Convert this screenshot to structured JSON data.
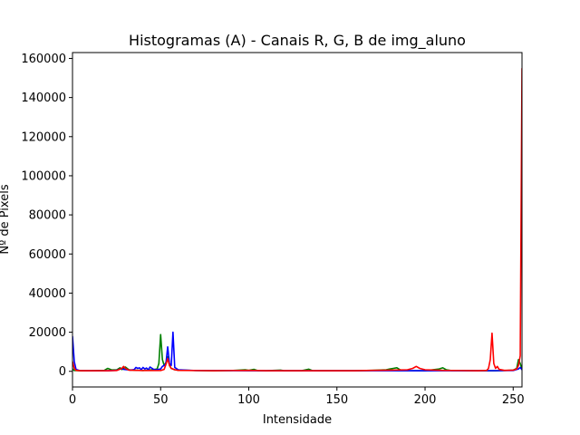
{
  "chart_data": {
    "type": "line",
    "title": "Histogramas (A) - Canais R, G, B de img_aluno",
    "xlabel": "Intensidade",
    "ylabel": "Nº de Pixels",
    "xlim": [
      0,
      255
    ],
    "ylim": [
      -8000,
      163000
    ],
    "xticks": [
      0,
      50,
      100,
      150,
      200,
      250
    ],
    "yticks": [
      0,
      20000,
      40000,
      60000,
      80000,
      100000,
      120000,
      140000,
      160000
    ],
    "grid": false,
    "legend": "none",
    "series": [
      {
        "color": "#008000",
        "points": [
          [
            0,
            1200
          ],
          [
            1,
            400
          ],
          [
            5,
            300
          ],
          [
            10,
            300
          ],
          [
            18,
            500
          ],
          [
            20,
            1500
          ],
          [
            22,
            800
          ],
          [
            25,
            700
          ],
          [
            27,
            1800
          ],
          [
            28,
            900
          ],
          [
            30,
            2200
          ],
          [
            32,
            800
          ],
          [
            35,
            600
          ],
          [
            38,
            500
          ],
          [
            40,
            400
          ],
          [
            45,
            800
          ],
          [
            48,
            1200
          ],
          [
            49,
            4000
          ],
          [
            50,
            18800
          ],
          [
            51,
            6000
          ],
          [
            52,
            3000
          ],
          [
            53,
            4500
          ],
          [
            54,
            7500
          ],
          [
            55,
            3000
          ],
          [
            56,
            1500
          ],
          [
            58,
            800
          ],
          [
            60,
            600
          ],
          [
            70,
            400
          ],
          [
            80,
            300
          ],
          [
            90,
            400
          ],
          [
            98,
            800
          ],
          [
            100,
            500
          ],
          [
            103,
            1000
          ],
          [
            105,
            400
          ],
          [
            110,
            300
          ],
          [
            118,
            600
          ],
          [
            120,
            300
          ],
          [
            130,
            300
          ],
          [
            134,
            1100
          ],
          [
            136,
            400
          ],
          [
            140,
            300
          ],
          [
            150,
            300
          ],
          [
            160,
            300
          ],
          [
            170,
            500
          ],
          [
            178,
            800
          ],
          [
            180,
            1200
          ],
          [
            182,
            1500
          ],
          [
            184,
            1800
          ],
          [
            186,
            700
          ],
          [
            190,
            400
          ],
          [
            200,
            300
          ],
          [
            208,
            1200
          ],
          [
            210,
            1800
          ],
          [
            212,
            800
          ],
          [
            215,
            400
          ],
          [
            220,
            400
          ],
          [
            230,
            300
          ],
          [
            240,
            300
          ],
          [
            245,
            400
          ],
          [
            250,
            600
          ],
          [
            252,
            1500
          ],
          [
            253,
            6000
          ],
          [
            254,
            4000
          ],
          [
            255,
            1000
          ]
        ]
      },
      {
        "color": "#0000ff",
        "points": [
          [
            0,
            18000
          ],
          [
            1,
            5000
          ],
          [
            2,
            1000
          ],
          [
            4,
            400
          ],
          [
            10,
            300
          ],
          [
            20,
            300
          ],
          [
            25,
            500
          ],
          [
            28,
            1500
          ],
          [
            29,
            1000
          ],
          [
            31,
            800
          ],
          [
            33,
            600
          ],
          [
            35,
            900
          ],
          [
            36,
            2000
          ],
          [
            37,
            1500
          ],
          [
            38,
            1800
          ],
          [
            39,
            800
          ],
          [
            40,
            2000
          ],
          [
            41,
            1200
          ],
          [
            42,
            1700
          ],
          [
            43,
            800
          ],
          [
            44,
            2200
          ],
          [
            45,
            1600
          ],
          [
            46,
            1000
          ],
          [
            47,
            800
          ],
          [
            48,
            900
          ],
          [
            50,
            1200
          ],
          [
            51,
            2500
          ],
          [
            52,
            3000
          ],
          [
            53,
            4000
          ],
          [
            54,
            12500
          ],
          [
            55,
            4000
          ],
          [
            56,
            3000
          ],
          [
            57,
            20000
          ],
          [
            58,
            2000
          ],
          [
            60,
            800
          ],
          [
            70,
            400
          ],
          [
            80,
            400
          ],
          [
            100,
            300
          ],
          [
            120,
            300
          ],
          [
            150,
            300
          ],
          [
            180,
            300
          ],
          [
            200,
            300
          ],
          [
            230,
            300
          ],
          [
            250,
            400
          ],
          [
            253,
            1200
          ],
          [
            254,
            2000
          ],
          [
            255,
            800
          ]
        ]
      },
      {
        "color": "#ff0000",
        "points": [
          [
            0,
            5000
          ],
          [
            1,
            1500
          ],
          [
            2,
            500
          ],
          [
            5,
            300
          ],
          [
            10,
            300
          ],
          [
            20,
            300
          ],
          [
            25,
            400
          ],
          [
            28,
            1500
          ],
          [
            29,
            2500
          ],
          [
            30,
            1500
          ],
          [
            32,
            600
          ],
          [
            40,
            400
          ],
          [
            50,
            400
          ],
          [
            52,
            1000
          ],
          [
            53,
            3500
          ],
          [
            54,
            6500
          ],
          [
            55,
            3000
          ],
          [
            56,
            1500
          ],
          [
            58,
            800
          ],
          [
            60,
            500
          ],
          [
            70,
            400
          ],
          [
            80,
            300
          ],
          [
            90,
            400
          ],
          [
            100,
            500
          ],
          [
            110,
            300
          ],
          [
            120,
            300
          ],
          [
            130,
            300
          ],
          [
            140,
            300
          ],
          [
            150,
            300
          ],
          [
            160,
            300
          ],
          [
            170,
            500
          ],
          [
            180,
            600
          ],
          [
            190,
            800
          ],
          [
            193,
            1500
          ],
          [
            195,
            2500
          ],
          [
            197,
            1500
          ],
          [
            200,
            800
          ],
          [
            210,
            500
          ],
          [
            220,
            400
          ],
          [
            230,
            300
          ],
          [
            235,
            500
          ],
          [
            236,
            1500
          ],
          [
            237,
            6000
          ],
          [
            238,
            19500
          ],
          [
            239,
            4000
          ],
          [
            240,
            1500
          ],
          [
            241,
            2500
          ],
          [
            242,
            1000
          ],
          [
            245,
            500
          ],
          [
            250,
            600
          ],
          [
            252,
            1200
          ],
          [
            253,
            3000
          ],
          [
            254,
            8000
          ],
          [
            255,
            155000
          ]
        ]
      }
    ]
  }
}
